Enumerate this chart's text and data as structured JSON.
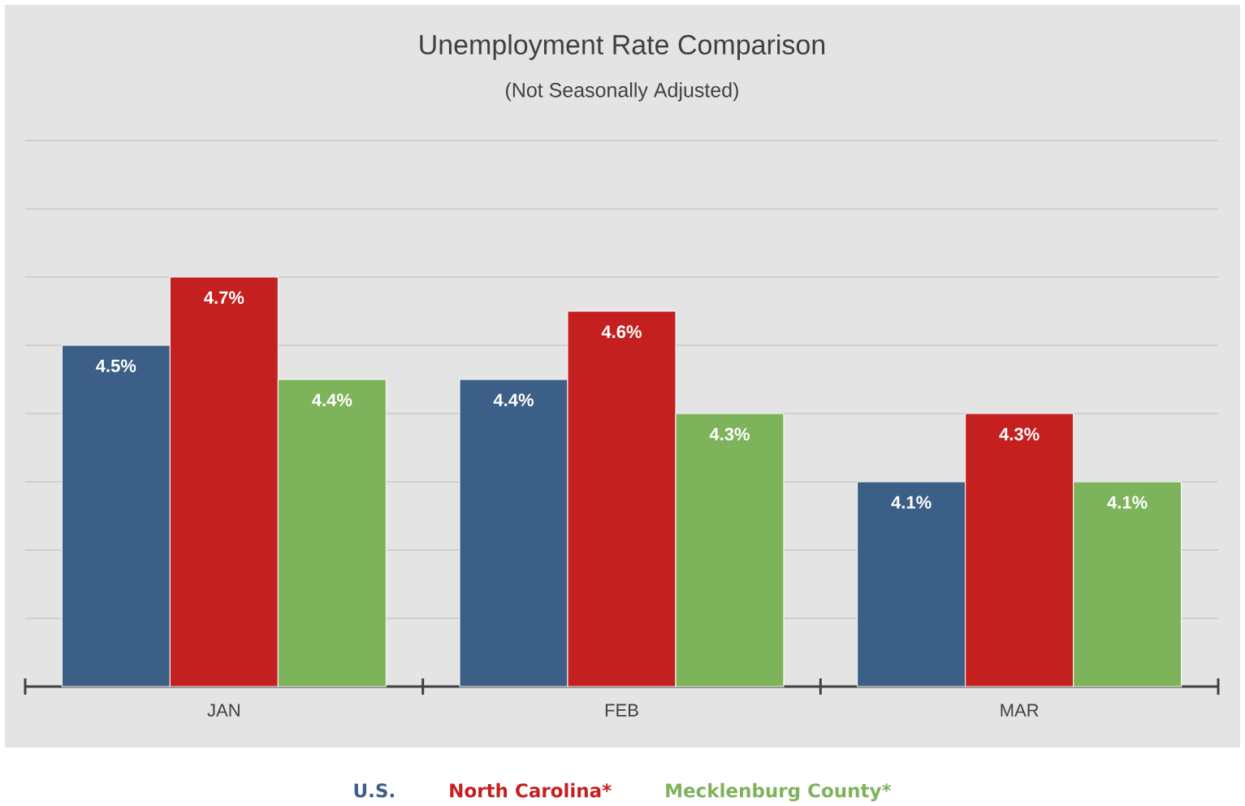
{
  "chart_data": {
    "type": "bar",
    "title": "Unemployment Rate Comparison",
    "subtitle": "(Not Seasonally Adjusted)",
    "categories": [
      "JAN",
      "FEB",
      "MAR"
    ],
    "series": [
      {
        "name": "U.S.",
        "color": "#3b5f86",
        "values": [
          4.5,
          4.4,
          4.1
        ],
        "value_labels": [
          "4.5%",
          "4.4%",
          "4.1%"
        ]
      },
      {
        "name": "North Carolina*",
        "color": "#c42020",
        "values": [
          4.7,
          4.6,
          4.3
        ],
        "value_labels": [
          "4.7%",
          "4.6%",
          "4.3%"
        ]
      },
      {
        "name": "Mecklenburg County*",
        "color": "#7db35a",
        "values": [
          4.4,
          4.3,
          4.1
        ],
        "value_labels": [
          "4.4%",
          "4.3%",
          "4.1%"
        ]
      }
    ],
    "ylim": [
      3.5,
      5.1
    ],
    "yticks": [
      {
        "value": 3.7,
        "label": null
      },
      {
        "value": 3.9,
        "label": null
      },
      {
        "value": 4.1,
        "label": null
      },
      {
        "value": 4.3,
        "label": null
      },
      {
        "value": 4.5,
        "label": null
      },
      {
        "value": 4.7,
        "label": null
      },
      {
        "value": 4.9,
        "label": null
      },
      {
        "value": 5.1,
        "label": null
      }
    ],
    "grid": "y",
    "legend": "bottom",
    "tick_labels": "x"
  }
}
